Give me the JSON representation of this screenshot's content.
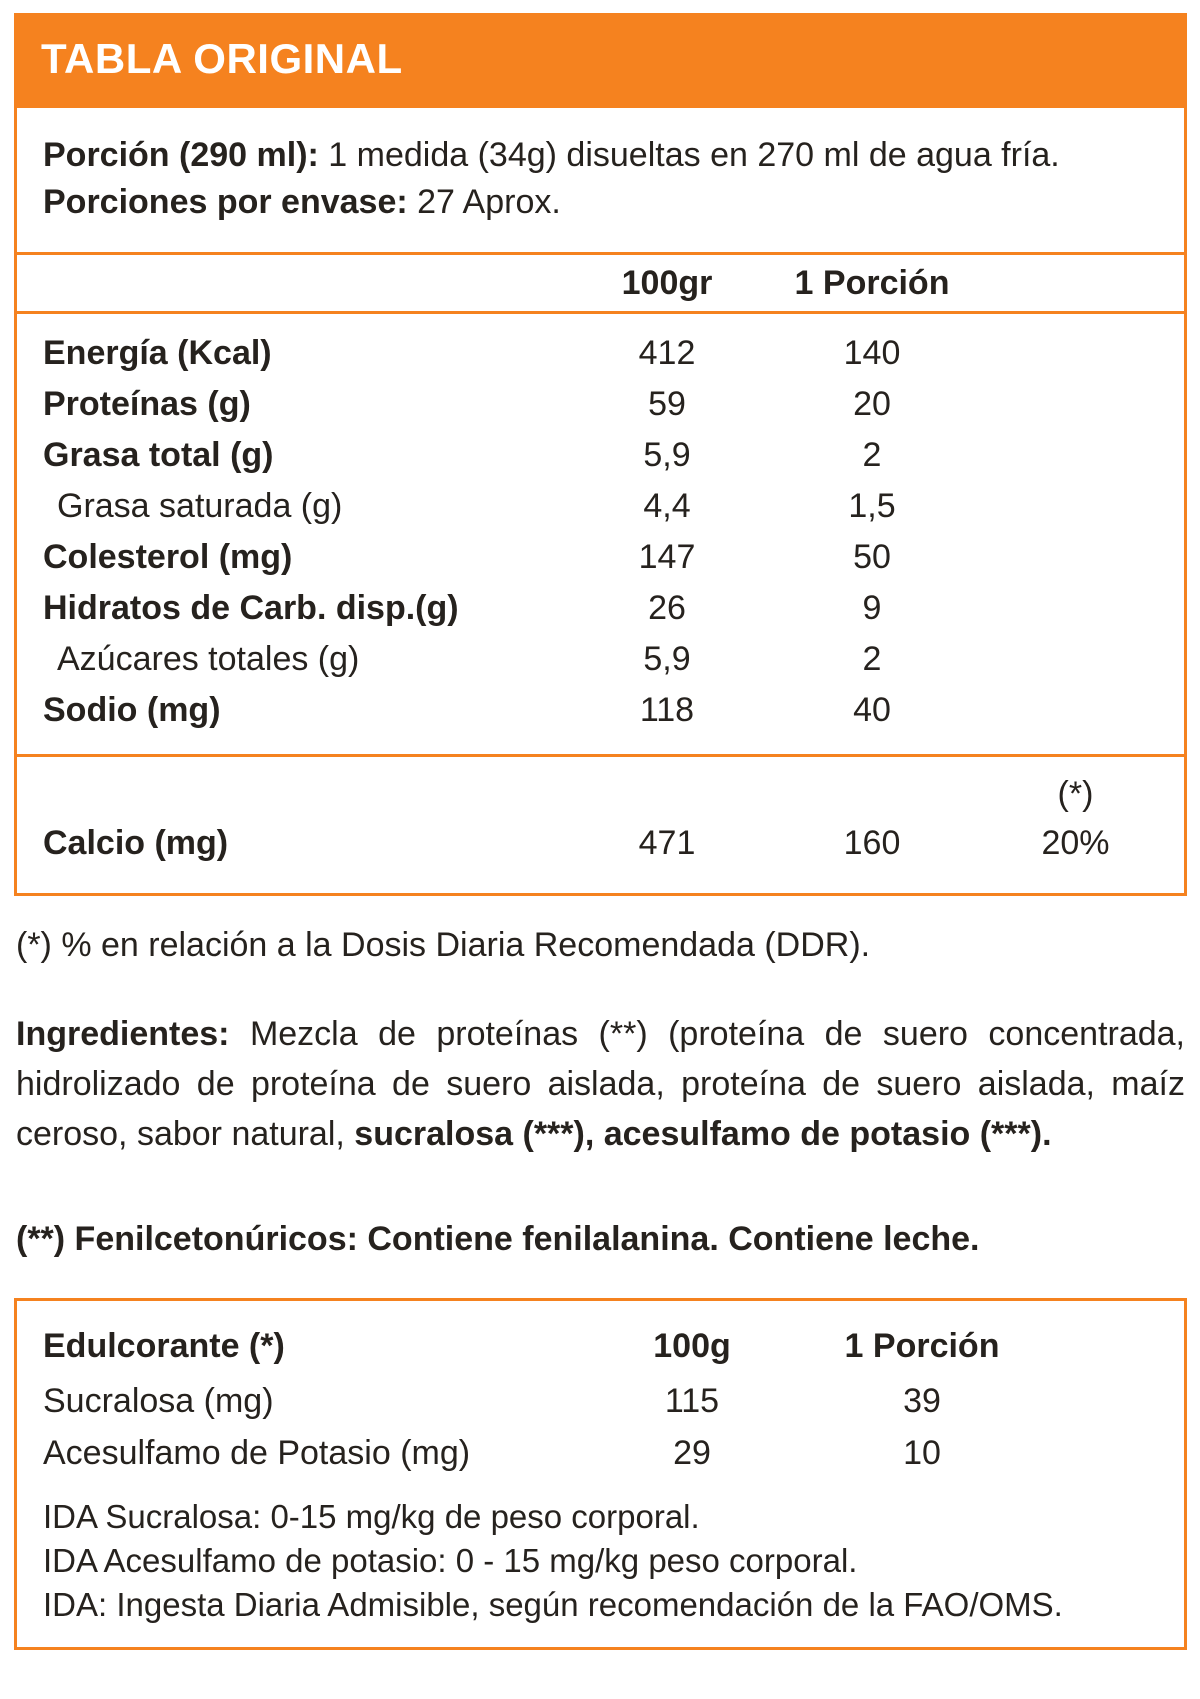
{
  "header": {
    "title": "TABLA ORIGINAL"
  },
  "serving": {
    "portion_label": "Porción (290 ml):",
    "portion_text": "1 medida (34g) disueltas en 270 ml de agua fría.",
    "servings_label": "Porciones por envase:",
    "servings_text": "27 Aprox."
  },
  "nutrition_table": {
    "col_100g": "100gr",
    "col_portion": "1 Porción",
    "rows": [
      {
        "label": "Energía (Kcal)",
        "v100": "412",
        "vpor": "140"
      },
      {
        "label": "Proteínas (g)",
        "v100": "59",
        "vpor": "20"
      },
      {
        "label": "Grasa total (g)",
        "v100": "5,9",
        "vpor": "2"
      },
      {
        "label": "Grasa saturada (g)",
        "v100": "4,4",
        "vpor": "1,5"
      },
      {
        "label": "Colesterol (mg)",
        "v100": "147",
        "vpor": "50"
      },
      {
        "label": "Hidratos de Carb. disp.(g)",
        "v100": "26",
        "vpor": "9"
      },
      {
        "label": "Azúcares totales (g)",
        "v100": "5,9",
        "vpor": "2"
      },
      {
        "label": "Sodio (mg)",
        "v100": "118",
        "vpor": "40"
      }
    ]
  },
  "calcium": {
    "ddr_marker": "(*)",
    "label": "Calcio (mg)",
    "v100": "471",
    "vpor": "160",
    "ddr_value": "20%"
  },
  "ddr_note": "(*) % en relación a la Dosis Diaria Recomendada (DDR).",
  "ingredients": {
    "label": "Ingredientes:",
    "text_regular": "Mezcla de proteínas (**) (proteína de suero concentrada, hidrolizado de proteína de suero aislada, proteína de suero aislada, maíz ceroso, sabor natural,",
    "text_bold": "sucralosa (***), acesulfamo de potasio (***)."
  },
  "phenyl_note": "(**) Fenilcetonúricos: Contiene fenilalanina. Contiene leche.",
  "sweetener_table": {
    "header_label": "Edulcorante (*)",
    "col_100g": "100g",
    "col_portion": "1 Porción",
    "rows": [
      {
        "label": "Sucralosa (mg)",
        "v100": "115",
        "vpor": "39"
      },
      {
        "label": "Acesulfamo de Potasio (mg)",
        "v100": "29",
        "vpor": "10"
      }
    ],
    "notes": [
      "IDA Sucralosa: 0-15 mg/kg de peso corporal.",
      "IDA Acesulfamo de potasio: 0 - 15 mg/kg peso corporal.",
      "IDA: Ingesta Diaria Admisible, según recomendación de la FAO/OMS."
    ]
  },
  "colors": {
    "accent": "#f5821f",
    "text": "#26221e"
  }
}
